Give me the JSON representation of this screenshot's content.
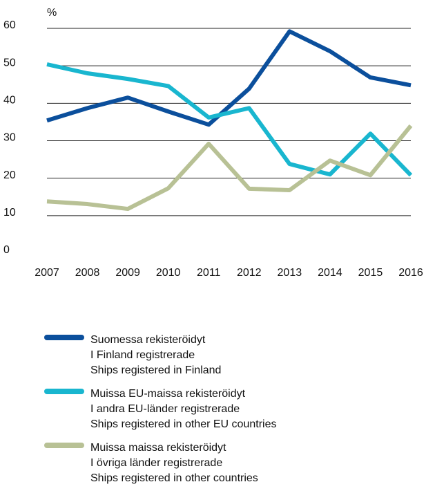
{
  "chart_data": {
    "type": "line",
    "ylabel": "%",
    "categories": [
      "2007",
      "2008",
      "2009",
      "2010",
      "2011",
      "2012",
      "2013",
      "2014",
      "2015",
      "2016"
    ],
    "series": [
      {
        "name": [
          "Suomessa rekisteröidyt",
          "I Finland registrerade",
          "Ships registered in Finland"
        ],
        "color": "#0b4f9c",
        "values": [
          35.4,
          38.7,
          41.5,
          37.8,
          34.3,
          43.9,
          59.2,
          53.9,
          46.9,
          44.8
        ]
      },
      {
        "name": [
          "Muissa EU-maissa rekisteröidyt",
          "I andra EU-länder registrerade",
          "Ships registered in other EU countries"
        ],
        "color": "#19b6cf",
        "values": [
          50.4,
          48,
          46.5,
          44.6,
          36.2,
          38.7,
          23.8,
          21,
          31.9,
          20.8
        ]
      },
      {
        "name": [
          "Muissa maissa rekisteröidyt",
          "I övriga länder registrerade",
          "Ships registered in other countries"
        ],
        "color": "#b8c195",
        "values": [
          13.8,
          13.1,
          11.8,
          17.3,
          29.2,
          17.2,
          16.8,
          24.7,
          20.8,
          34
        ]
      }
    ],
    "ylim": [
      0,
      60
    ],
    "yticks": [
      0,
      10,
      20,
      30,
      40,
      50,
      60
    ],
    "grid": true
  }
}
